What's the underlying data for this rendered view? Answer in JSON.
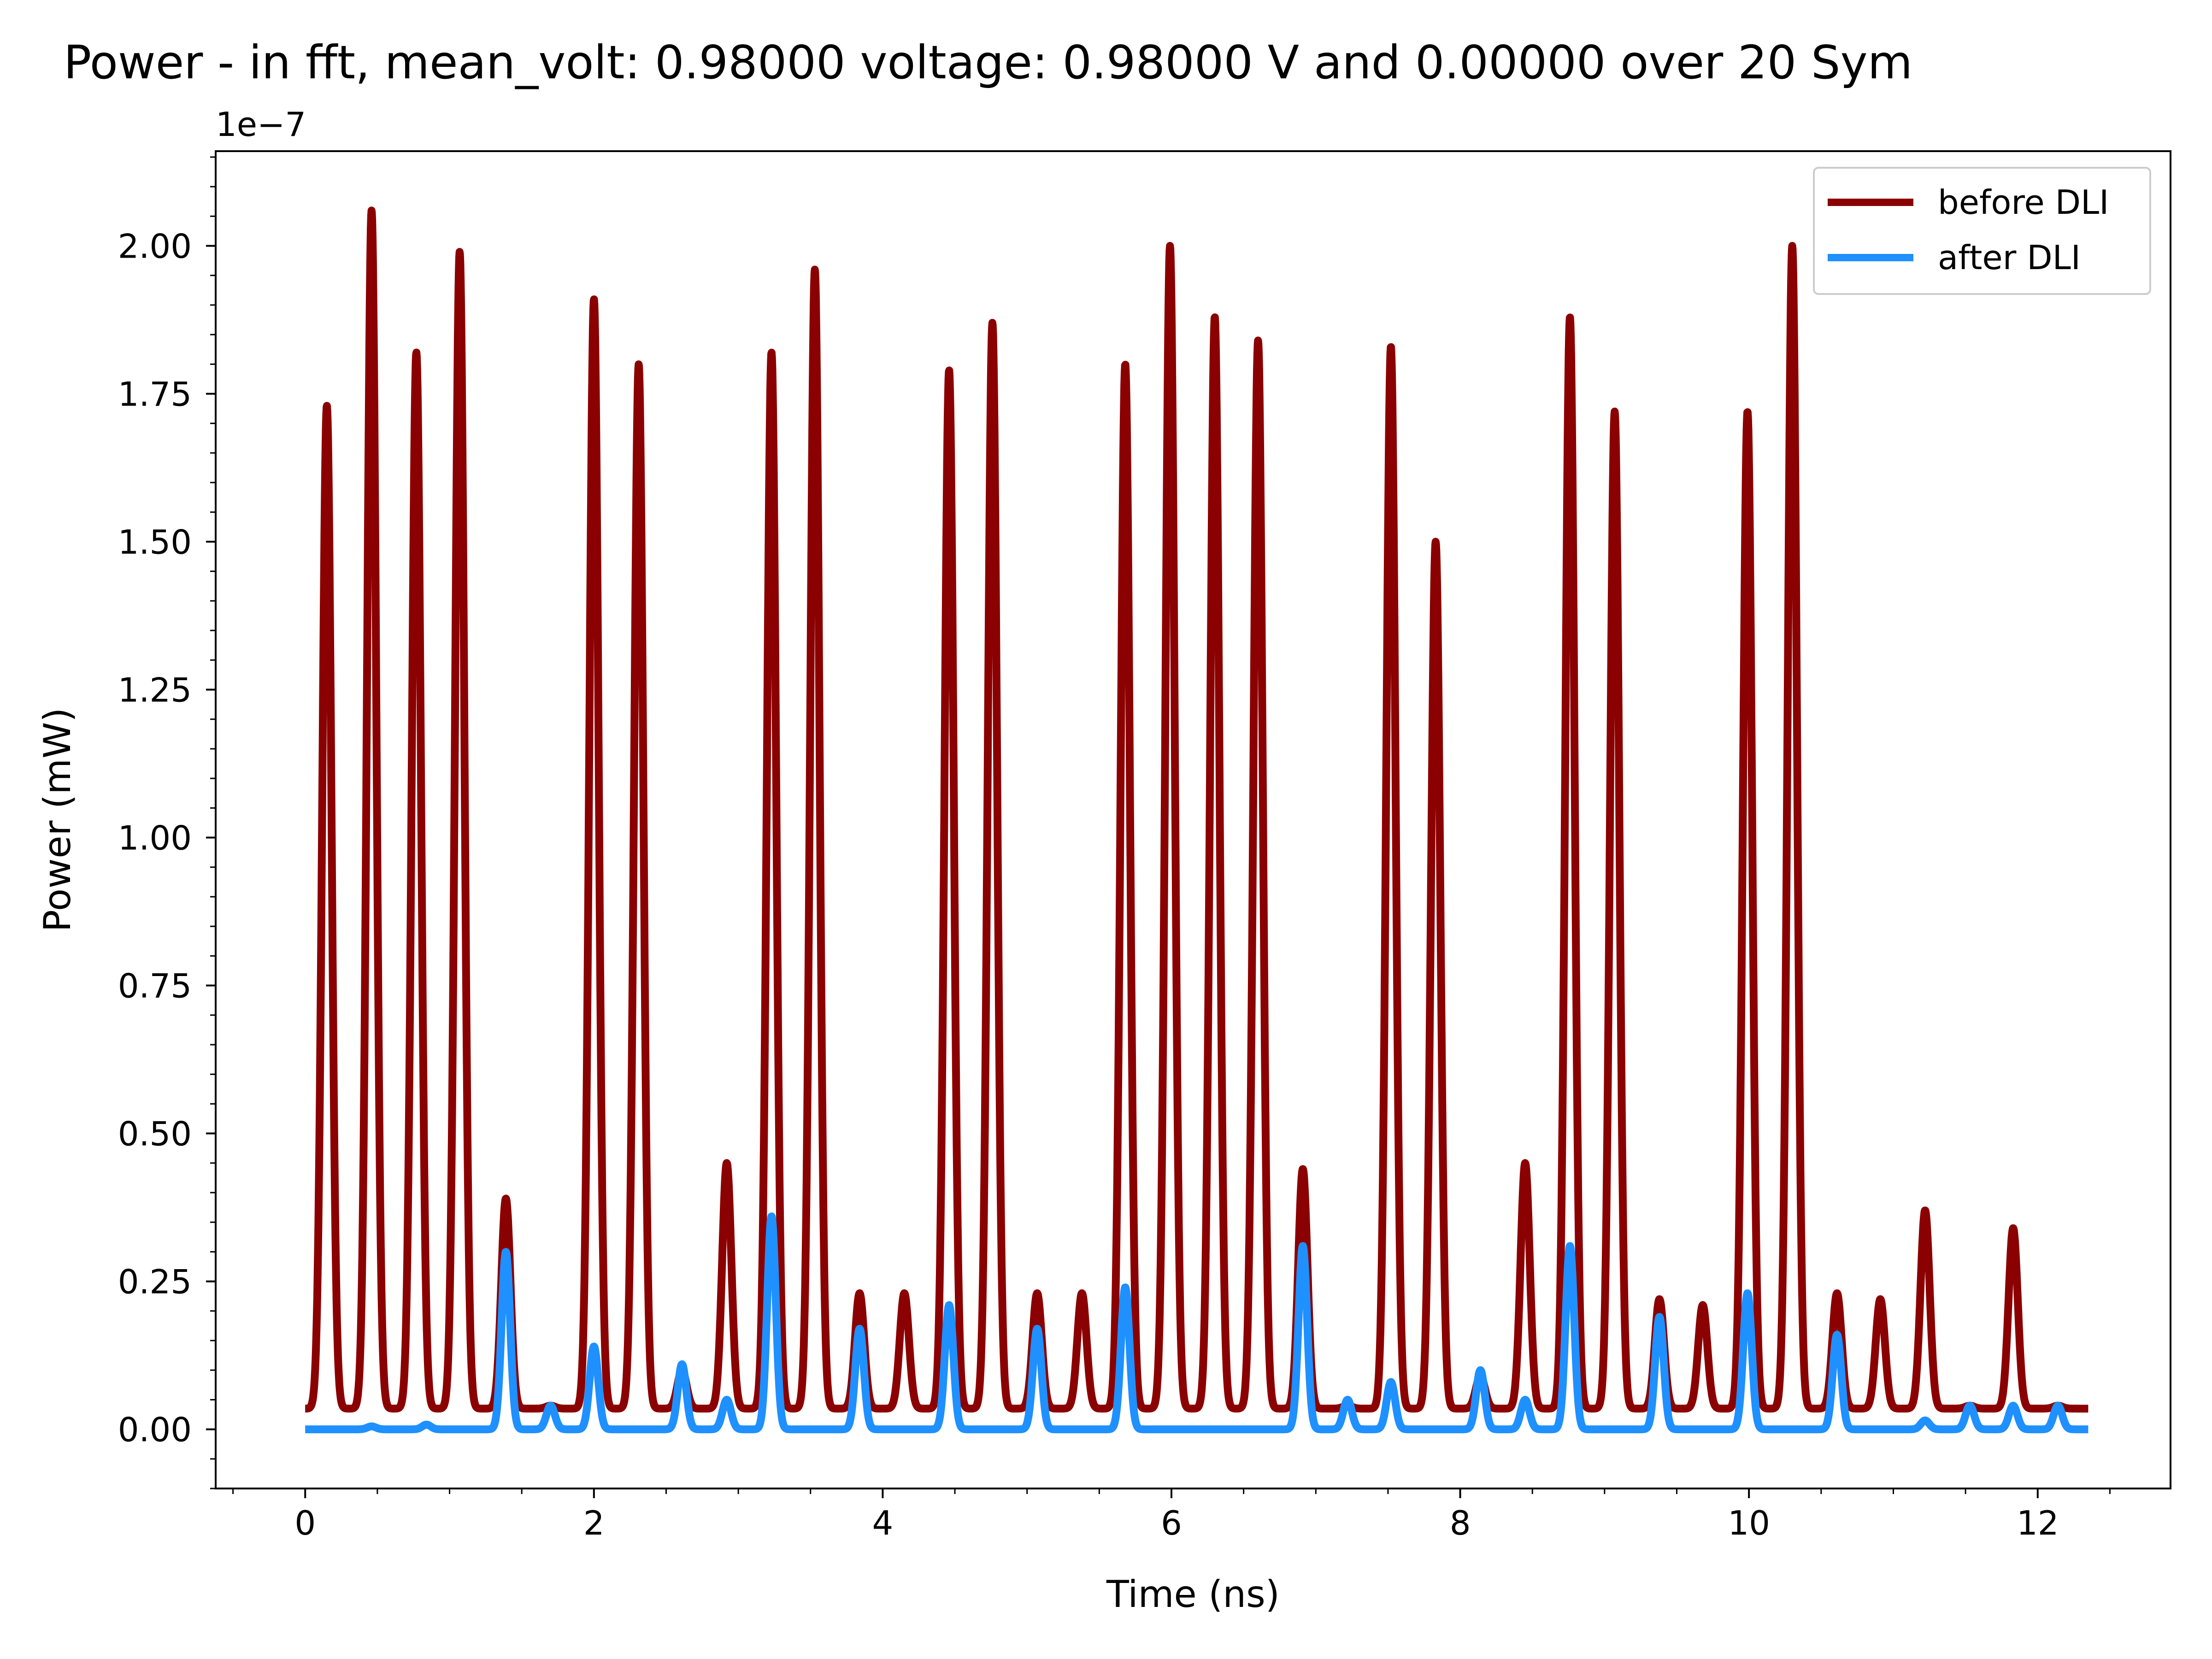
{
  "chart_data": {
    "type": "line",
    "title": "Power - in fft, mean_volt: 0.98000 voltage: 0.98000 V and 0.00000 over 20 Sym",
    "xlabel": "Time (ns)",
    "ylabel": "Power (mW)",
    "y_offset_label": "1e−7",
    "y_scale_exponent": -7,
    "xlim": [
      -0.62,
      12.92
    ],
    "ylim": [
      -0.1,
      2.16
    ],
    "x_ticks": [
      0,
      2,
      4,
      6,
      8,
      10,
      12
    ],
    "x_tick_labels": [
      "0",
      "2",
      "4",
      "6",
      "8",
      "10",
      "12"
    ],
    "y_ticks": [
      0.0,
      0.25,
      0.5,
      0.75,
      1.0,
      1.25,
      1.5,
      1.75,
      2.0
    ],
    "y_tick_labels": [
      "0.00",
      "0.25",
      "0.50",
      "0.75",
      "1.00",
      "1.25",
      "1.50",
      "1.75",
      "2.00"
    ],
    "x_range": [
      0,
      12.35
    ],
    "grid": false,
    "legend_position": "upper-right",
    "series": [
      {
        "name": "before DLI",
        "color": "#8b0000",
        "baseline": 0.035,
        "peak_width_ns": 0.045,
        "peaks": [
          {
            "x": 0.15,
            "y": 1.73
          },
          {
            "x": 0.46,
            "y": 2.06
          },
          {
            "x": 0.77,
            "y": 1.82
          },
          {
            "x": 1.07,
            "y": 1.99
          },
          {
            "x": 1.39,
            "y": 0.39
          },
          {
            "x": 1.7,
            "y": 0.04
          },
          {
            "x": 2.0,
            "y": 1.91
          },
          {
            "x": 2.31,
            "y": 1.8
          },
          {
            "x": 2.61,
            "y": 0.1
          },
          {
            "x": 2.92,
            "y": 0.45
          },
          {
            "x": 3.23,
            "y": 1.82
          },
          {
            "x": 3.53,
            "y": 1.96
          },
          {
            "x": 3.84,
            "y": 0.23
          },
          {
            "x": 4.15,
            "y": 0.23
          },
          {
            "x": 4.46,
            "y": 1.79
          },
          {
            "x": 4.76,
            "y": 1.87
          },
          {
            "x": 5.07,
            "y": 0.23
          },
          {
            "x": 5.38,
            "y": 0.23
          },
          {
            "x": 5.68,
            "y": 1.8
          },
          {
            "x": 5.99,
            "y": 2.0
          },
          {
            "x": 6.3,
            "y": 1.88
          },
          {
            "x": 6.6,
            "y": 1.84
          },
          {
            "x": 6.91,
            "y": 0.44
          },
          {
            "x": 7.22,
            "y": 0.04
          },
          {
            "x": 7.52,
            "y": 1.83
          },
          {
            "x": 7.83,
            "y": 1.5
          },
          {
            "x": 8.14,
            "y": 0.09
          },
          {
            "x": 8.45,
            "y": 0.45
          },
          {
            "x": 8.76,
            "y": 1.88
          },
          {
            "x": 9.07,
            "y": 1.72
          },
          {
            "x": 9.38,
            "y": 0.22
          },
          {
            "x": 9.68,
            "y": 0.21
          },
          {
            "x": 9.99,
            "y": 1.72
          },
          {
            "x": 10.3,
            "y": 2.0
          },
          {
            "x": 10.61,
            "y": 0.23
          },
          {
            "x": 10.91,
            "y": 0.22
          },
          {
            "x": 11.22,
            "y": 0.37
          },
          {
            "x": 11.53,
            "y": 0.04
          },
          {
            "x": 11.83,
            "y": 0.34
          },
          {
            "x": 12.14,
            "y": 0.04
          }
        ]
      },
      {
        "name": "after DLI",
        "color": "#1e90ff",
        "baseline": 0.0,
        "peak_width_ns": 0.042,
        "peaks": [
          {
            "x": 0.46,
            "y": 0.005
          },
          {
            "x": 0.84,
            "y": 0.008
          },
          {
            "x": 1.39,
            "y": 0.3
          },
          {
            "x": 1.7,
            "y": 0.04
          },
          {
            "x": 2.0,
            "y": 0.14
          },
          {
            "x": 2.61,
            "y": 0.11
          },
          {
            "x": 2.92,
            "y": 0.05
          },
          {
            "x": 3.23,
            "y": 0.36
          },
          {
            "x": 3.84,
            "y": 0.17
          },
          {
            "x": 4.46,
            "y": 0.21
          },
          {
            "x": 5.07,
            "y": 0.17
          },
          {
            "x": 5.68,
            "y": 0.24
          },
          {
            "x": 6.91,
            "y": 0.31
          },
          {
            "x": 7.22,
            "y": 0.05
          },
          {
            "x": 7.52,
            "y": 0.08
          },
          {
            "x": 8.14,
            "y": 0.1
          },
          {
            "x": 8.45,
            "y": 0.05
          },
          {
            "x": 8.76,
            "y": 0.31
          },
          {
            "x": 9.38,
            "y": 0.19
          },
          {
            "x": 9.99,
            "y": 0.23
          },
          {
            "x": 10.61,
            "y": 0.16
          },
          {
            "x": 11.22,
            "y": 0.015
          },
          {
            "x": 11.53,
            "y": 0.04
          },
          {
            "x": 11.83,
            "y": 0.04
          },
          {
            "x": 12.14,
            "y": 0.04
          }
        ]
      }
    ]
  }
}
